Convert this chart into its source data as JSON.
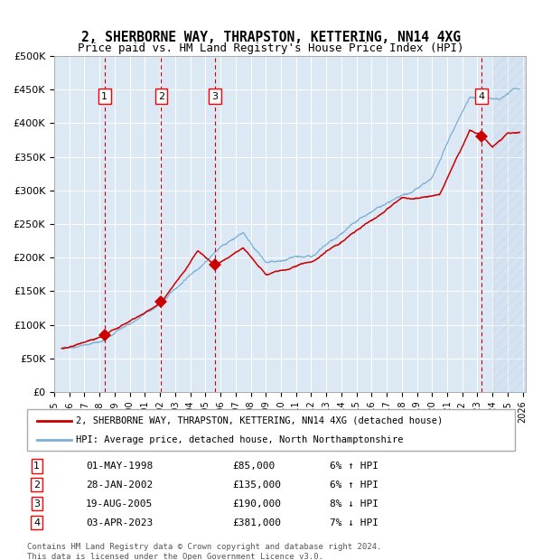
{
  "title": "2, SHERBORNE WAY, THRAPSTON, KETTERING, NN14 4XG",
  "subtitle": "Price paid vs. HM Land Registry's House Price Index (HPI)",
  "title_fontsize": 11,
  "subtitle_fontsize": 9.5,
  "background_color": "#dde8f5",
  "plot_bg_color": "#dde8f5",
  "x_start_year": 1995,
  "x_end_year": 2026,
  "ylim": [
    0,
    500000
  ],
  "yticks": [
    0,
    50000,
    100000,
    150000,
    200000,
    250000,
    300000,
    350000,
    400000,
    450000,
    500000
  ],
  "ytick_labels": [
    "£0",
    "£50K",
    "£100K",
    "£150K",
    "£200K",
    "£250K",
    "£300K",
    "£350K",
    "£400K",
    "£450K",
    "£500K"
  ],
  "sales": [
    {
      "label": "1",
      "date": 1998.33,
      "price": 85000,
      "date_str": "01-MAY-1998",
      "pct": "6%",
      "dir": "↑"
    },
    {
      "label": "2",
      "date": 2002.08,
      "price": 135000,
      "date_str": "28-JAN-2002",
      "pct": "6%",
      "dir": "↑"
    },
    {
      "label": "3",
      "date": 2005.63,
      "price": 190000,
      "date_str": "19-AUG-2005",
      "pct": "8%",
      "dir": "↓"
    },
    {
      "label": "4",
      "date": 2023.25,
      "price": 381000,
      "date_str": "03-APR-2023",
      "pct": "7%",
      "dir": "↓"
    }
  ],
  "legend_line1": "2, SHERBORNE WAY, THRAPSTON, KETTERING, NN14 4XG (detached house)",
  "legend_line2": "HPI: Average price, detached house, North Northamptonshire",
  "footer": "Contains HM Land Registry data © Crown copyright and database right 2024.\nThis data is licensed under the Open Government Licence v3.0.",
  "red_line_color": "#cc0000",
  "blue_line_color": "#7ab0d4",
  "hatch_color": "#b0c4d8",
  "sale_marker_color": "#cc0000",
  "vline_color_sale": "#cc0000",
  "vline_color_first": "#888888"
}
